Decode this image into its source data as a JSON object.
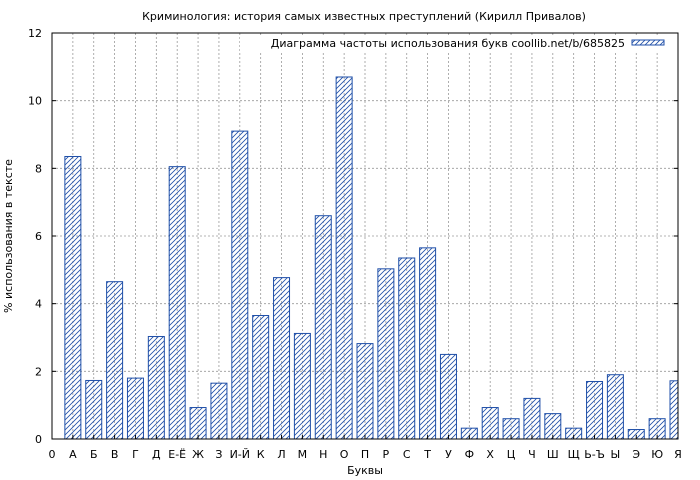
{
  "chart_data": {
    "type": "bar",
    "title": "Криминология: история самых известных преступлений (Кирилл Привалов)",
    "xlabel": "Буквы",
    "ylabel": "% использования в тексте",
    "legend": {
      "label": "Диаграмма частоты использования букв coollib.net/b/685825",
      "placement": "top-right"
    },
    "ylim": [
      0,
      12
    ],
    "yticks": [
      0,
      2,
      4,
      6,
      8,
      10,
      12
    ],
    "x_origin_label": "0",
    "grid": true,
    "categories": [
      "А",
      "Б",
      "В",
      "Г",
      "Д",
      "Е-Ё",
      "Ж",
      "З",
      "И-Й",
      "К",
      "Л",
      "М",
      "Н",
      "О",
      "П",
      "Р",
      "С",
      "Т",
      "У",
      "Ф",
      "Х",
      "Ц",
      "Ч",
      "Ш",
      "Щ",
      "Ь-Ъ",
      "Ы",
      "Э",
      "Ю",
      "Я"
    ],
    "values": [
      8.35,
      1.73,
      4.65,
      1.8,
      3.03,
      8.05,
      0.93,
      1.65,
      9.1,
      3.65,
      4.77,
      3.12,
      6.6,
      10.7,
      2.82,
      5.03,
      5.35,
      5.65,
      2.5,
      0.32,
      0.93,
      0.6,
      1.2,
      0.75,
      0.32,
      1.7,
      1.9,
      0.28,
      0.6,
      1.72
    ],
    "colors": {
      "bar_stroke": "#1f4fa8",
      "hatch": "#1f4fa8",
      "grid": "#9a9a9a"
    }
  }
}
